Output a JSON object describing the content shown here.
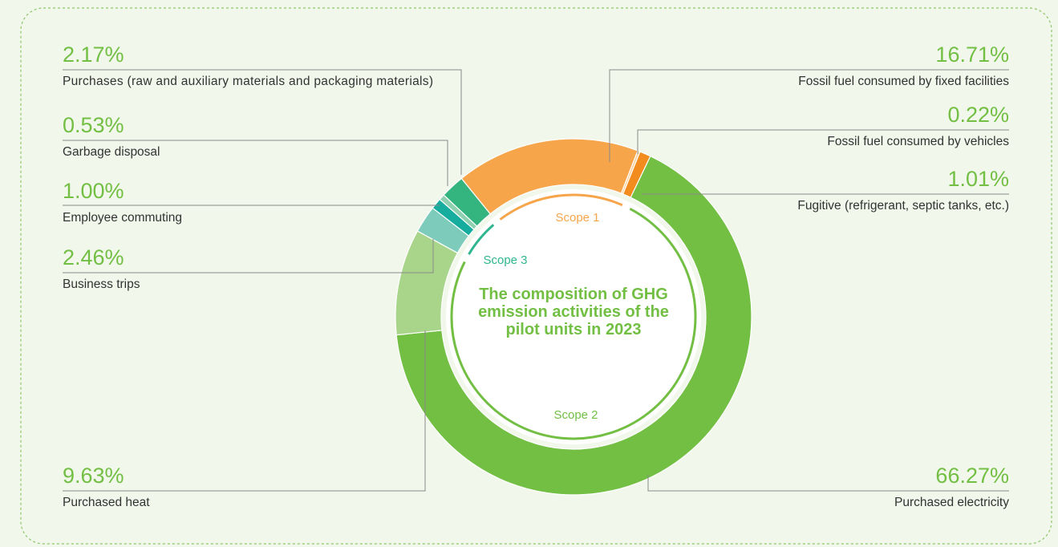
{
  "chart_data": {
    "type": "pie",
    "title": "The composition of GHG emission activities of the pilot units in 2023",
    "categories": [
      "Fossil fuel consumed by fixed facilities",
      "Fossil fuel consumed by vehicles",
      "Fugitive (refrigerant, septic tanks, etc.)",
      "Purchased electricity",
      "Purchased heat",
      "Business trips",
      "Employee commuting",
      "Garbage disposal",
      "Purchases (raw and auxiliary materials and packaging materials)"
    ],
    "values": [
      16.71,
      0.22,
      1.01,
      66.27,
      9.63,
      2.46,
      1.0,
      0.53,
      2.17
    ],
    "value_labels": [
      "16.71%",
      "0.22%",
      "1.01%",
      "66.27%",
      "9.63%",
      "2.46%",
      "1.00%",
      "0.53%",
      "2.17%"
    ],
    "colors": [
      "#f7a54b",
      "#fbcf94",
      "#f28c1e",
      "#72bf44",
      "#a9d58b",
      "#7ccbbb",
      "#16ad9f",
      "#8fd0b1",
      "#34b47e"
    ],
    "scopes": [
      {
        "name": "Scope 1",
        "color": "#f7a54b"
      },
      {
        "name": "Scope 2",
        "color": "#72bf44"
      },
      {
        "name": "Scope 3",
        "color": "#2fb58f"
      }
    ]
  }
}
